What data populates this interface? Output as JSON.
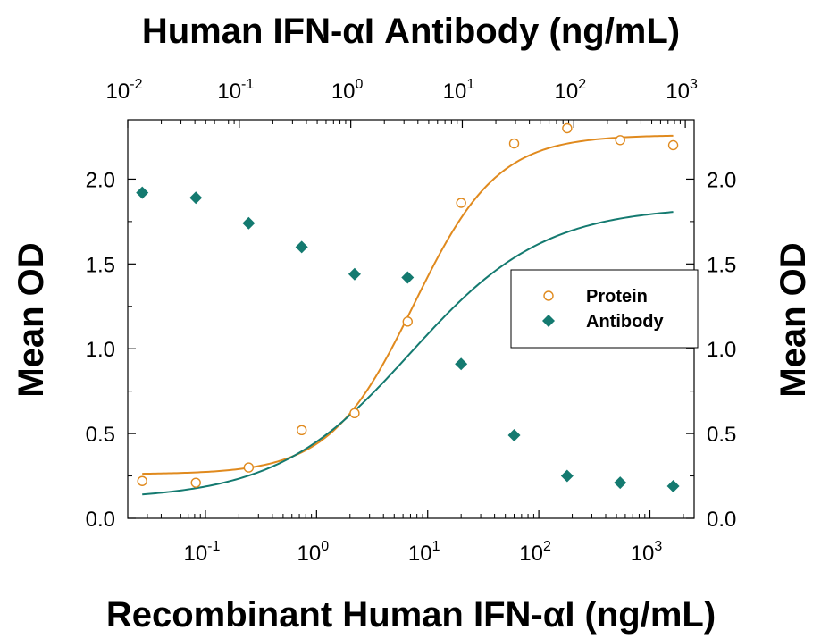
{
  "chart_data": {
    "type": "scatter",
    "title_top": "Human IFN-αΙ Antibody (ng/mL)",
    "xlabel": "Recombinant Human IFN-αΙ (ng/mL)",
    "ylabel_left": "Mean OD",
    "ylabel_right": "Mean OD",
    "x_scale": "log",
    "xlim": [
      0.02,
      2500
    ],
    "ylim": [
      0,
      2.35
    ],
    "top_axis": {
      "scale": "log",
      "lim": [
        0.01,
        1200
      ],
      "ticks": [
        0.01,
        0.1,
        1,
        10,
        100,
        1000
      ],
      "tick_labels": [
        {
          "base": "10",
          "exp": "-2"
        },
        {
          "base": "10",
          "exp": "-1"
        },
        {
          "base": "10",
          "exp": "0"
        },
        {
          "base": "10",
          "exp": "1"
        },
        {
          "base": "10",
          "exp": "2"
        },
        {
          "base": "10",
          "exp": "3"
        }
      ]
    },
    "bottom_axis": {
      "ticks": [
        0.1,
        1,
        10,
        100,
        1000
      ],
      "tick_labels": [
        {
          "base": "10",
          "exp": "-1"
        },
        {
          "base": "10",
          "exp": "0"
        },
        {
          "base": "10",
          "exp": "1"
        },
        {
          "base": "10",
          "exp": "2"
        },
        {
          "base": "10",
          "exp": "3"
        }
      ]
    },
    "y_ticks": [
      0.0,
      0.5,
      1.0,
      1.5,
      2.0
    ],
    "y_tick_labels": [
      "0.0",
      "0.5",
      "1.0",
      "1.5",
      "2.0"
    ],
    "grid": false,
    "legend_position": "center-right",
    "series": [
      {
        "name": "Protein",
        "marker": "open-circle",
        "color": "#e08a1e",
        "x": [
          0.027,
          0.082,
          0.245,
          0.735,
          2.2,
          6.6,
          20,
          60,
          180,
          540,
          1620
        ],
        "y": [
          0.22,
          0.21,
          0.3,
          0.52,
          0.62,
          1.16,
          1.86,
          2.21,
          2.3,
          2.23,
          2.2
        ],
        "fit": {
          "bottom": 0.26,
          "top": 2.26,
          "ec50": 7.5,
          "hill": 1.15
        }
      },
      {
        "name": "Antibody",
        "marker": "filled-diamond",
        "color": "#147a70",
        "x": [
          0.027,
          0.082,
          0.245,
          0.735,
          2.2,
          6.6,
          20,
          60,
          180,
          540,
          1620
        ],
        "y": [
          1.92,
          1.89,
          1.74,
          1.6,
          1.44,
          1.42,
          0.91,
          0.49,
          0.25,
          0.21,
          0.19
        ],
        "fit": {
          "bottom": 0.11,
          "top": 1.84,
          "ec50": 7.0,
          "hill": 0.72
        }
      }
    ]
  },
  "colors": {
    "protein": "#e08a1e",
    "antibody": "#147a70",
    "axis": "#000000",
    "background": "#ffffff"
  }
}
